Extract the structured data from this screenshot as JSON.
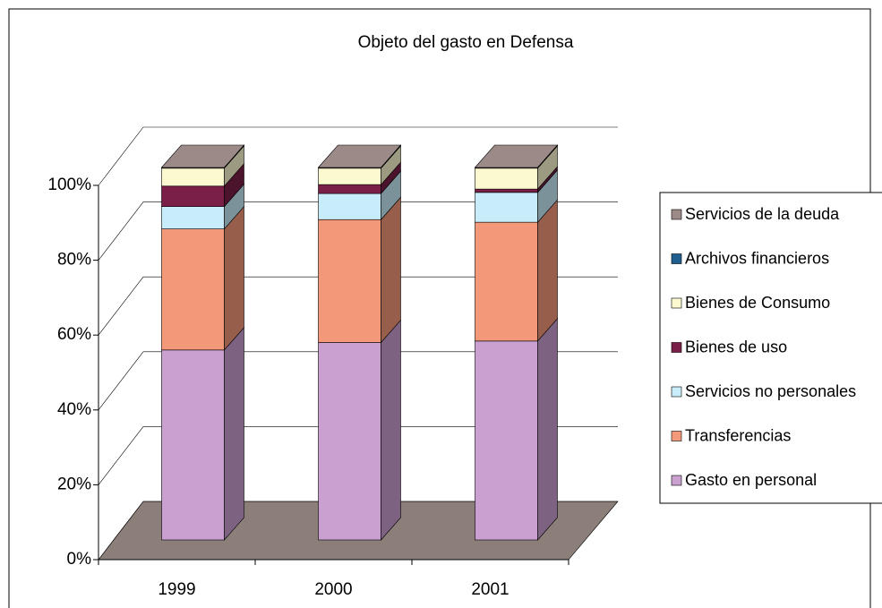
{
  "chart_data": {
    "type": "bar",
    "stacked": true,
    "title": "Objeto del gasto en Defensa",
    "categories": [
      "1999",
      "2000",
      "2001"
    ],
    "series": [
      {
        "name": "Gasto en personal",
        "color": "#c9a0d0",
        "values": [
          51,
          53,
          53.4
        ]
      },
      {
        "name": "Transferencias",
        "color": "#f4987a",
        "values": [
          32.5,
          33,
          31.9
        ]
      },
      {
        "name": "Servicios no personales",
        "color": "#c8ecfa",
        "values": [
          6,
          7,
          8
        ]
      },
      {
        "name": "Bienes de uso",
        "color": "#7a1f48",
        "values": [
          5.5,
          2.4,
          0.9
        ]
      },
      {
        "name": "Bienes de Consumo",
        "color": "#fcf8d0",
        "values": [
          4.8,
          4.4,
          5.6
        ]
      },
      {
        "name": "Archivos financieros",
        "color": "#1f5f8f",
        "values": [
          0,
          0,
          0
        ]
      },
      {
        "name": "Servicios de la deuda",
        "color": "#9c8a88",
        "values": [
          0.2,
          0.2,
          0.2
        ]
      }
    ],
    "ylim": [
      0,
      100
    ],
    "yticks": [
      {
        "value": 0,
        "label": "0%"
      },
      {
        "value": 20,
        "label": "20%"
      },
      {
        "value": 40,
        "label": "40%"
      },
      {
        "value": 60,
        "label": "60%"
      },
      {
        "value": 80,
        "label": "80%"
      },
      {
        "value": 100,
        "label": "100%"
      }
    ],
    "grid": true,
    "legend": "right"
  }
}
